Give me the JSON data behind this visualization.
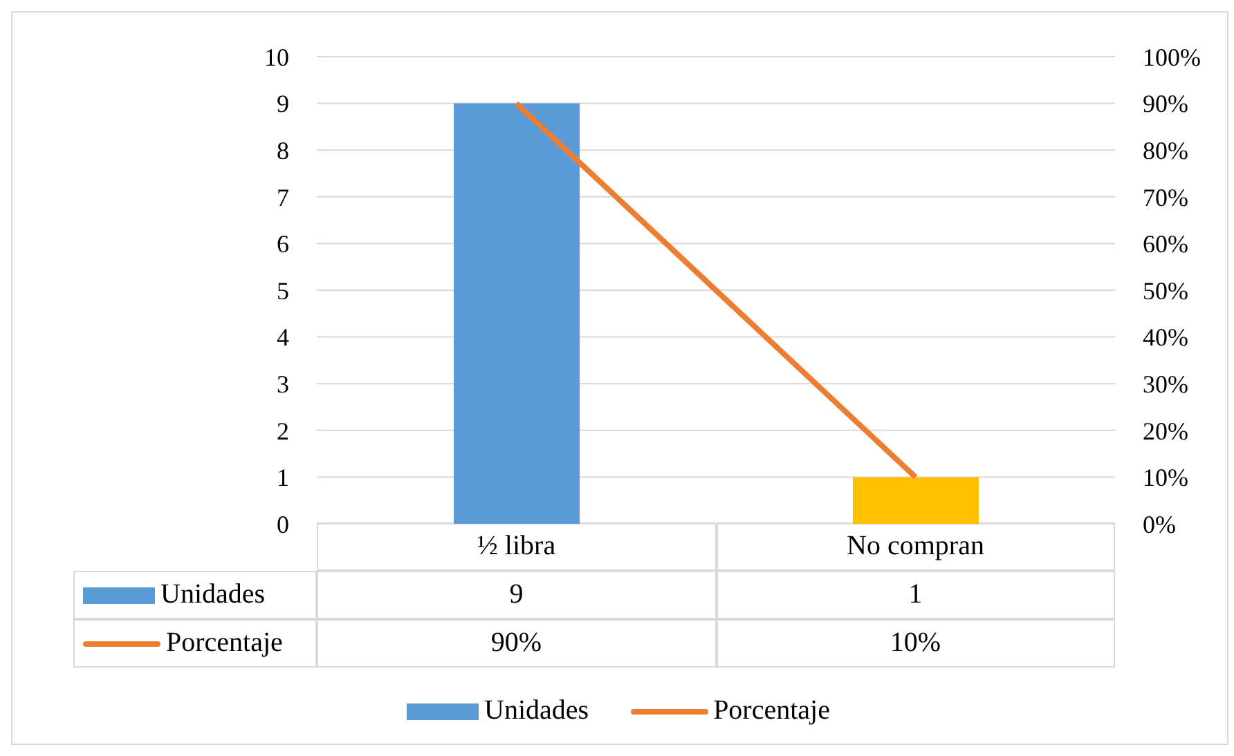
{
  "chart_data": {
    "type": "bar",
    "categories": [
      "½ libra",
      "No compran"
    ],
    "series": [
      {
        "name": "Unidades",
        "color": "#5b9bd5",
        "colors": [
          "#5b9bd5",
          "#ffc000"
        ],
        "values": [
          9,
          1
        ],
        "value_labels": [
          "9",
          "1"
        ]
      },
      {
        "name": "Porcentaje",
        "type": "line",
        "axis": "y2",
        "color": "#ed7d31",
        "values": [
          90,
          10
        ],
        "value_labels": [
          "90%",
          "10%"
        ]
      }
    ],
    "ylim": [
      0,
      10
    ],
    "yticks": [
      0,
      1,
      2,
      3,
      4,
      5,
      6,
      7,
      8,
      9,
      10
    ],
    "y2lim": [
      0,
      100
    ],
    "y2ticks": [
      {
        "value": 0,
        "label": "0%"
      },
      {
        "value": 10,
        "label": "10%"
      },
      {
        "value": 20,
        "label": "20%"
      },
      {
        "value": 30,
        "label": "30%"
      },
      {
        "value": 40,
        "label": "40%"
      },
      {
        "value": 50,
        "label": "50%"
      },
      {
        "value": 60,
        "label": "60%"
      },
      {
        "value": 70,
        "label": "70%"
      },
      {
        "value": 80,
        "label": "80%"
      },
      {
        "value": 90,
        "label": "90%"
      },
      {
        "value": 100,
        "label": "100%"
      }
    ],
    "grid": "y",
    "legend": "bottom",
    "marker": "none"
  }
}
